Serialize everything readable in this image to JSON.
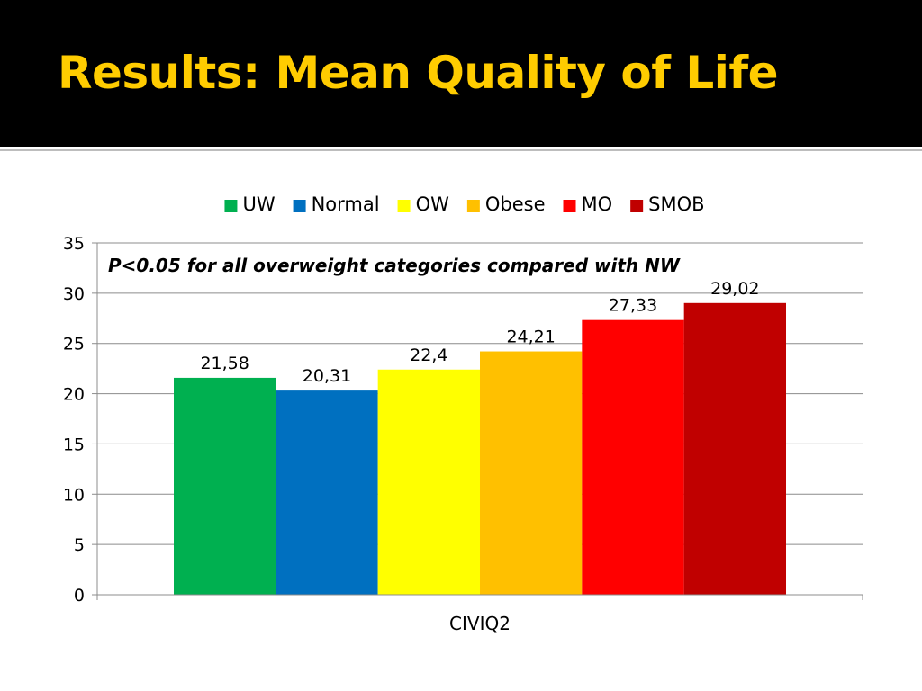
{
  "slide": {
    "title": "Results:  Mean Quality of Life"
  },
  "chart_data": {
    "type": "bar",
    "title": "",
    "annotation": "P<0.05 for all overweight categories compared with NW",
    "xlabel": "",
    "ylabel": "",
    "categories": [
      "CIVIQ2"
    ],
    "series": [
      {
        "name": "UW",
        "values": [
          21.58
        ],
        "label": "21,58",
        "color": "#00b050"
      },
      {
        "name": "Normal",
        "values": [
          20.31
        ],
        "label": "20,31",
        "color": "#0070c0"
      },
      {
        "name": "OW",
        "values": [
          22.4
        ],
        "label": "22,4",
        "color": "#ffff00"
      },
      {
        "name": "Obese",
        "values": [
          24.21
        ],
        "label": "24,21",
        "color": "#ffc000"
      },
      {
        "name": "MO",
        "values": [
          27.33
        ],
        "label": "27,33",
        "color": "#ff0000"
      },
      {
        "name": "SMOB",
        "values": [
          29.02
        ],
        "label": "29,02",
        "color": "#c00000"
      }
    ],
    "ylim": [
      0,
      35
    ],
    "yticks": [
      "0",
      "5",
      "10",
      "15",
      "20",
      "25",
      "30",
      "35"
    ],
    "grid": true,
    "legend_position": "top"
  }
}
